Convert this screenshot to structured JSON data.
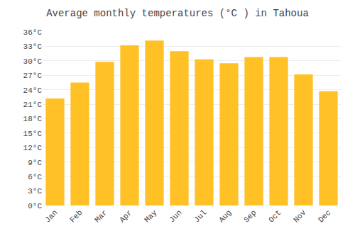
{
  "chart_data": {
    "type": "bar",
    "title": "Average monthly temperatures (°C ) in Tahoua",
    "categories": [
      "Jan",
      "Feb",
      "Mar",
      "Apr",
      "May",
      "Jun",
      "Jul",
      "Aug",
      "Sep",
      "Oct",
      "Nov",
      "Dec"
    ],
    "values": [
      22.2,
      25.5,
      29.8,
      33.2,
      34.2,
      32.0,
      30.3,
      29.5,
      30.8,
      30.8,
      27.2,
      23.7
    ],
    "color": "#FFC125",
    "ylim": [
      0,
      36
    ],
    "yticks": [
      {
        "value": 0,
        "label": "0°C"
      },
      {
        "value": 3,
        "label": "3°C"
      },
      {
        "value": 6,
        "label": "6°C"
      },
      {
        "value": 9,
        "label": "9°C"
      },
      {
        "value": 12,
        "label": "12°C"
      },
      {
        "value": 15,
        "label": "15°C"
      },
      {
        "value": 18,
        "label": "18°C"
      },
      {
        "value": 21,
        "label": "21°C"
      },
      {
        "value": 24,
        "label": "24°C"
      },
      {
        "value": 27,
        "label": "27°C"
      },
      {
        "value": 30,
        "label": "30°C"
      },
      {
        "value": 33,
        "label": "33°C"
      },
      {
        "value": 36,
        "label": "36°C"
      }
    ],
    "grid": true
  }
}
